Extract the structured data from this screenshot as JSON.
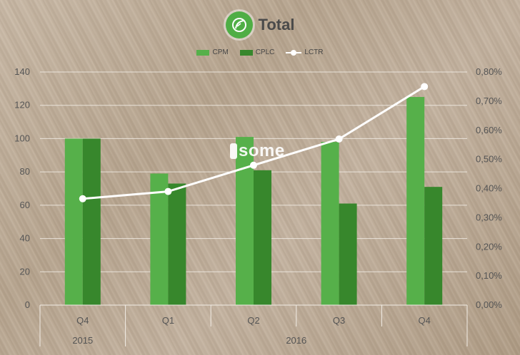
{
  "title": "Total",
  "colors": {
    "cpm": "#56b04a",
    "cplc": "#37872c",
    "lctr": "#ffffff",
    "grid": "#f2ede6",
    "logo": "#4fae45"
  },
  "legend": {
    "cpm": "CPM",
    "cplc": "CPLC",
    "lctr": "LCTR"
  },
  "watermark": "some",
  "chart_data": {
    "type": "bar",
    "categories": [
      "Q4",
      "Q1",
      "Q2",
      "Q3",
      "Q4"
    ],
    "groups": [
      {
        "label": "2015",
        "span": 1
      },
      {
        "label": "2016",
        "span": 4
      }
    ],
    "series": [
      {
        "name": "CPM",
        "type": "bar",
        "values": [
          100,
          79,
          101,
          98,
          125
        ]
      },
      {
        "name": "CPLC",
        "type": "bar",
        "values": [
          100,
          73,
          81,
          61,
          71
        ]
      },
      {
        "name": "LCTR",
        "type": "line",
        "axis": "right",
        "values": [
          0.365,
          0.39,
          0.48,
          0.57,
          0.75
        ]
      }
    ],
    "ylim": [
      0,
      140
    ],
    "yticks": [
      "0",
      "20",
      "40",
      "60",
      "80",
      "100",
      "120",
      "140"
    ],
    "y2lim": [
      0,
      0.8
    ],
    "y2ticks": [
      "0,00%",
      "0,10%",
      "0,20%",
      "0,30%",
      "0,40%",
      "0,50%",
      "0,60%",
      "0,70%",
      "0,80%"
    ],
    "grid": true,
    "legend_position": "top"
  }
}
